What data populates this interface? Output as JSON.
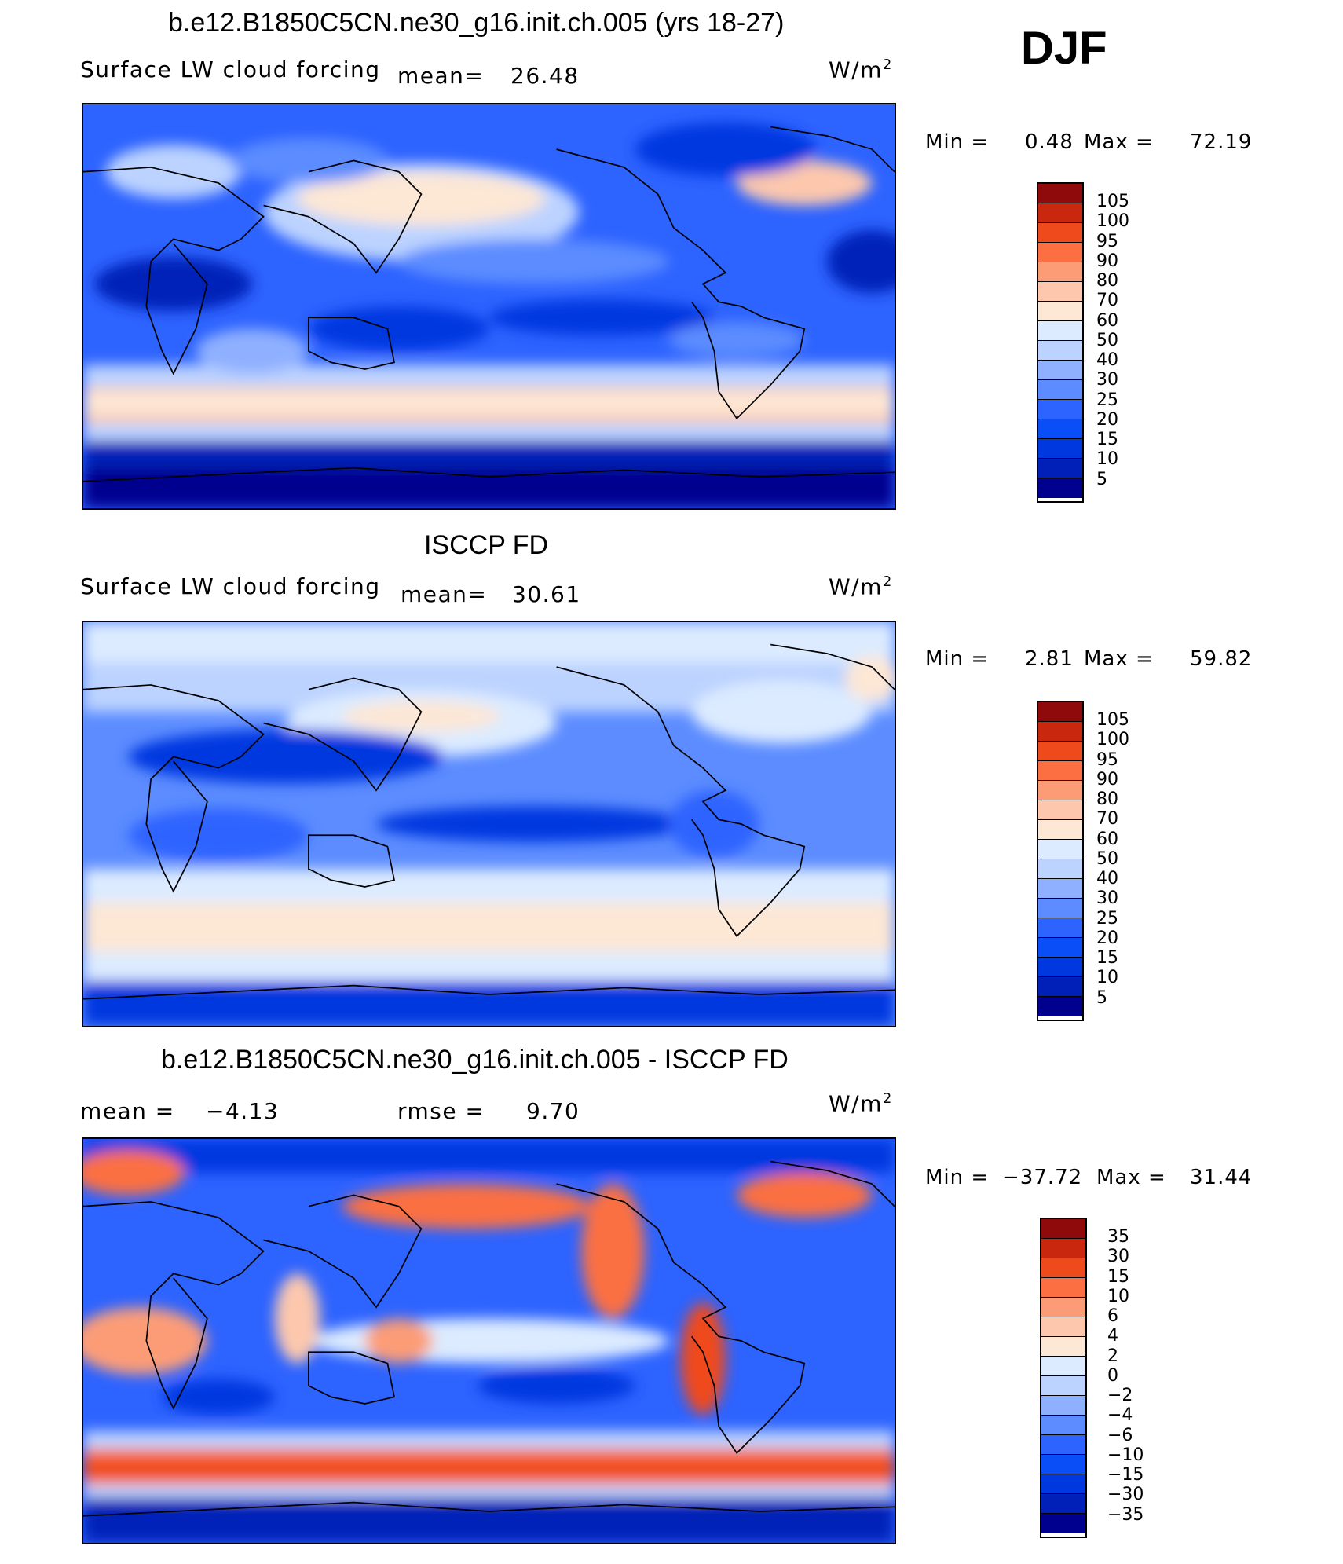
{
  "season": "DJF",
  "palette_full": [
    "#00008f",
    "#0020b8",
    "#0038e0",
    "#0a4ef8",
    "#2d63ff",
    "#5c8cff",
    "#8fb0ff",
    "#bcd3ff",
    "#dcebff",
    "#fde7d5",
    "#fcc7ad",
    "#fc9c77",
    "#fb6f42",
    "#ef4a1c",
    "#c9280e",
    "#8f0b0b"
  ],
  "panels": [
    {
      "title": "b.e12.B1850C5CN.ne30_g16.init.ch.005 (yrs 18-27)",
      "variable": "Surface LW cloud forcing",
      "mean_label": "mean=",
      "mean_value": "26.48",
      "units": "W/m",
      "units_exp": "2",
      "min_label": "Min =",
      "min_value": "0.48",
      "max_label": "Max =",
      "max_value": "72.19",
      "levels": [
        "105",
        "100",
        "95",
        "90",
        "80",
        "70",
        "60",
        "50",
        "40",
        "30",
        "25",
        "20",
        "15",
        "10",
        "5"
      ]
    },
    {
      "title": "ISCCP FD",
      "variable": "Surface LW cloud forcing",
      "mean_label": "mean=",
      "mean_value": "30.61",
      "units": "W/m",
      "units_exp": "2",
      "min_label": "Min =",
      "min_value": "2.81",
      "max_label": "Max =",
      "max_value": "59.82",
      "levels": [
        "105",
        "100",
        "95",
        "90",
        "80",
        "70",
        "60",
        "50",
        "40",
        "30",
        "25",
        "20",
        "15",
        "10",
        "5"
      ]
    },
    {
      "title": "b.e12.B1850C5CN.ne30_g16.init.ch.005 - ISCCP FD",
      "mean_label": "mean =",
      "mean_value": "−4.13",
      "rmse_label": "rmse =",
      "rmse_value": "9.70",
      "units": "W/m",
      "units_exp": "2",
      "min_label": "Min =",
      "min_value": "−37.72",
      "max_label": "Max =",
      "max_value": "31.44",
      "levels": [
        "35",
        "30",
        "15",
        "10",
        "6",
        "4",
        "2",
        "0",
        "−2",
        "−4",
        "−6",
        "−10",
        "−15",
        "−30",
        "−35"
      ]
    }
  ]
}
